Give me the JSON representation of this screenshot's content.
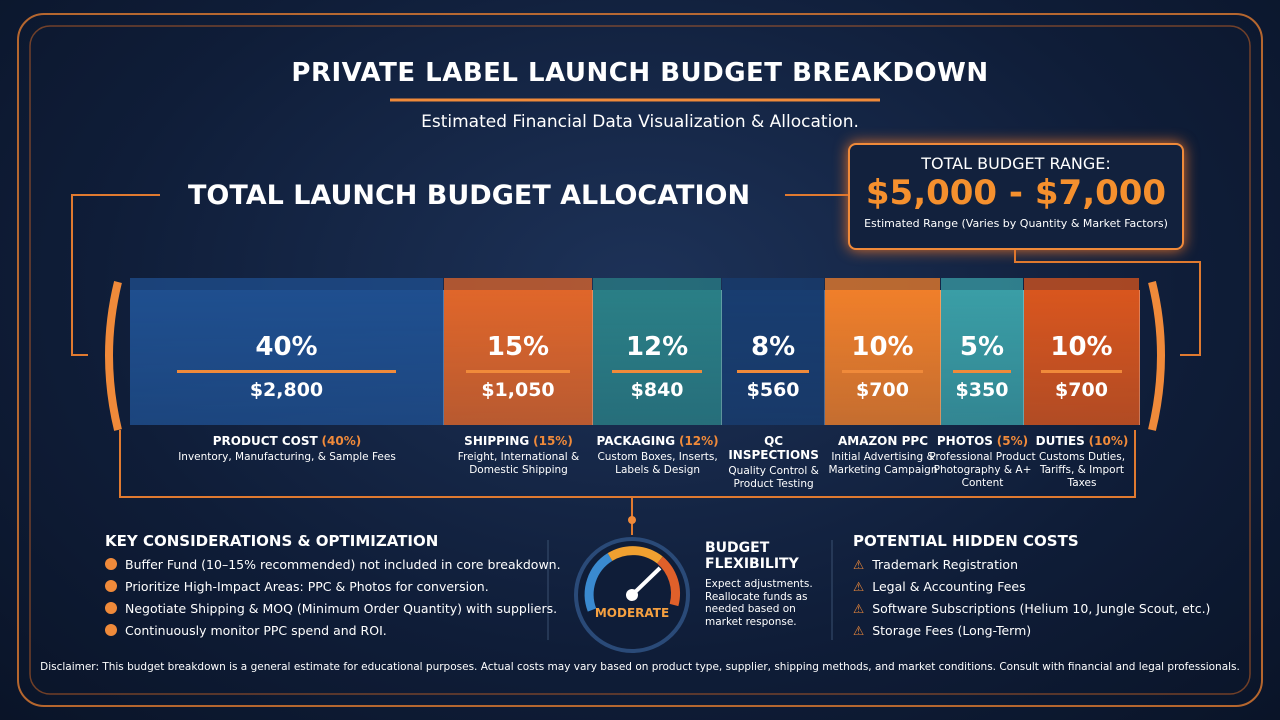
{
  "header": {
    "title": "PRIVATE LABEL LAUNCH BUDGET BREAKDOWN",
    "subtitle": "Estimated Financial Data Visualization & Allocation."
  },
  "allocation_title": "TOTAL LAUNCH BUDGET ALLOCATION",
  "budget_range": {
    "label": "TOTAL BUDGET RANGE:",
    "range": "$5,000 - $7,000",
    "note": "Estimated Range (Varies by Quantity & Market Factors)"
  },
  "segments": [
    {
      "share": 40,
      "share_label": "40%",
      "amount": 2800,
      "amount_label": "$2,800",
      "name": "PRODUCT COST",
      "name_share": "(40%)",
      "description": "Inventory, Manufacturing, & Sample Fees",
      "color": "#1f4f8f"
    },
    {
      "share": 15,
      "share_label": "15%",
      "amount": 1050,
      "amount_label": "$1,050",
      "name": "SHIPPING",
      "name_share": "(15%)",
      "description": "Freight, International & Domestic Shipping",
      "color": "#e0662a"
    },
    {
      "share": 12,
      "share_label": "12%",
      "amount": 840,
      "amount_label": "$840",
      "name": "PACKAGING",
      "name_share": "(12%)",
      "description": "Custom Boxes, Inserts, Labels & Design",
      "color": "#2a7f86"
    },
    {
      "share": 8,
      "share_label": "8%",
      "amount": 560,
      "amount_label": "$560",
      "name": "QC INSPECTIONS",
      "description": "Quality Control & Product Testing",
      "color": "#183d70"
    },
    {
      "share": 10,
      "share_label": "10%",
      "amount": 700,
      "amount_label": "$700",
      "name": "AMAZON PPC",
      "description": "Initial Advertising & Marketing Campaign",
      "color": "#f07f2a"
    },
    {
      "share": 5,
      "share_label": "5%",
      "amount": 350,
      "amount_label": "$350",
      "name": "PHOTOS",
      "name_share": "(5%)",
      "description": "Professional Product Photography & A+ Content",
      "color": "#3a9ea6"
    },
    {
      "share": 10,
      "share_label": "10%",
      "amount": 700,
      "amount_label": "$700",
      "name": "DUTIES",
      "name_share": "(10%)",
      "description": "Customs Duties, Tariffs, & Import Taxes",
      "color": "#d9561e"
    }
  ],
  "considerations": {
    "title": "KEY CONSIDERATIONS & OPTIMIZATION",
    "items": [
      "Buffer Fund (10–15% recommended) not included in core breakdown.",
      "Prioritize High-Impact Areas: PPC & Photos for conversion.",
      "Negotiate Shipping & MOQ (Minimum Order Quantity) with suppliers.",
      "Continuously monitor PPC spend and ROI."
    ]
  },
  "flexibility": {
    "gauge_label": "MODERATE",
    "title": "BUDGET FLEXIBILITY",
    "text": "Expect adjustments. Reallocate funds as needed based on market response."
  },
  "hidden_costs": {
    "title": "POTENTIAL HIDDEN COSTS",
    "items": [
      "Trademark Registration",
      "Legal & Accounting Fees",
      "Software Subscriptions (Helium 10, Jungle Scout, etc.)",
      "Storage Fees (Long-Term)"
    ]
  },
  "disclaimer": "Disclaimer: This budget breakdown is a general estimate for educational purposes. Actual costs may vary based on product type, supplier, shipping methods, and market conditions. Consult with financial and legal professionals."
}
